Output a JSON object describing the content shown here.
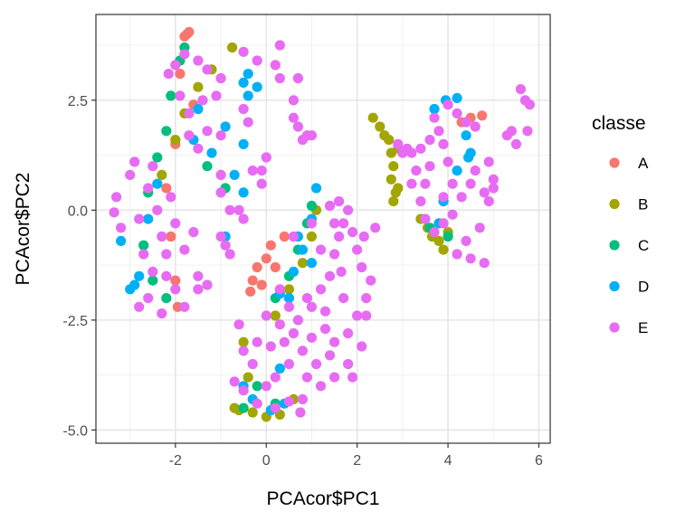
{
  "chart_data": {
    "type": "scatter",
    "title": "",
    "xlabel": "PCAcor$PC1",
    "ylabel": "PCAcor$PC2",
    "xlim": [
      -3.75,
      6.25
    ],
    "ylim": [
      -5.3,
      4.45
    ],
    "x_ticks": [
      -2,
      0,
      2,
      4,
      6
    ],
    "y_ticks": [
      -5.0,
      -2.5,
      0.0,
      2.5
    ],
    "x_tick_labels": [
      "-2",
      "0",
      "2",
      "4",
      "6"
    ],
    "y_tick_labels": [
      "-5.0",
      "-2.5",
      "0.0",
      "2.5"
    ],
    "grid": true,
    "legend": {
      "title": "classe",
      "position": "right",
      "entries": [
        "A",
        "B",
        "C",
        "D",
        "E"
      ]
    },
    "colors": {
      "A": "#F8766D",
      "B": "#A3A500",
      "C": "#00BF7D",
      "D": "#00B0F6",
      "E": "#E76BF3"
    },
    "series": [
      {
        "name": "A",
        "points": [
          [
            -1.75,
            4.0
          ],
          [
            -1.7,
            4.05
          ],
          [
            -1.8,
            3.95
          ],
          [
            -1.9,
            3.1
          ],
          [
            -1.6,
            2.4
          ],
          [
            -2.0,
            1.5
          ],
          [
            -2.2,
            0.5
          ],
          [
            -2.1,
            -0.6
          ],
          [
            -2.0,
            -1.6
          ],
          [
            -1.95,
            -2.2
          ],
          [
            -0.3,
            -1.6
          ],
          [
            -0.2,
            -1.3
          ],
          [
            0.0,
            -1.1
          ],
          [
            -0.35,
            -1.85
          ],
          [
            -0.1,
            -1.7
          ],
          [
            0.1,
            -0.8
          ],
          [
            0.2,
            -1.3
          ],
          [
            4.3,
            2.0
          ],
          [
            4.5,
            2.1
          ],
          [
            4.75,
            2.15
          ],
          [
            0.4,
            -0.6
          ]
        ]
      },
      {
        "name": "B",
        "points": [
          [
            -0.75,
            3.7
          ],
          [
            -1.2,
            3.2
          ],
          [
            -1.5,
            2.8
          ],
          [
            -1.8,
            2.2
          ],
          [
            -2.0,
            1.6
          ],
          [
            -2.3,
            0.8
          ],
          [
            2.35,
            2.1
          ],
          [
            2.5,
            1.9
          ],
          [
            2.6,
            1.7
          ],
          [
            2.7,
            1.6
          ],
          [
            2.75,
            1.3
          ],
          [
            2.8,
            1.0
          ],
          [
            2.75,
            0.7
          ],
          [
            2.85,
            0.4
          ],
          [
            2.9,
            0.5
          ],
          [
            2.8,
            0.2
          ],
          [
            2.9,
            1.4
          ],
          [
            -0.7,
            -4.5
          ],
          [
            -0.6,
            -4.55
          ],
          [
            -0.3,
            -4.6
          ],
          [
            0.0,
            -4.7
          ],
          [
            0.3,
            -4.65
          ],
          [
            0.6,
            -4.3
          ],
          [
            -0.4,
            -3.8
          ],
          [
            -0.5,
            -3.0
          ],
          [
            0.2,
            -2.4
          ],
          [
            0.5,
            -1.8
          ],
          [
            0.8,
            -1.2
          ],
          [
            1.0,
            -0.6
          ],
          [
            1.1,
            0.0
          ],
          [
            3.65,
            -0.6
          ],
          [
            3.8,
            -0.7
          ],
          [
            3.9,
            -0.9
          ],
          [
            3.55,
            -0.4
          ],
          [
            3.4,
            -0.2
          ],
          [
            4.0,
            -0.5
          ]
        ]
      },
      {
        "name": "C",
        "points": [
          [
            -1.8,
            3.7
          ],
          [
            -1.9,
            3.4
          ],
          [
            -2.1,
            2.6
          ],
          [
            -2.2,
            1.8
          ],
          [
            -2.4,
            1.2
          ],
          [
            -2.6,
            0.4
          ],
          [
            -2.7,
            -0.8
          ],
          [
            -2.5,
            -1.6
          ],
          [
            -2.2,
            -2.0
          ],
          [
            -1.3,
            1.0
          ],
          [
            -0.9,
            0.5
          ],
          [
            -0.5,
            -4.5
          ],
          [
            0.2,
            -4.4
          ],
          [
            -0.2,
            -4.0
          ],
          [
            0.2,
            -2.0
          ],
          [
            0.5,
            -1.5
          ],
          [
            0.7,
            -0.9
          ],
          [
            0.9,
            -0.3
          ],
          [
            1.0,
            0.1
          ],
          [
            3.6,
            -0.4
          ],
          [
            4.0,
            -0.6
          ]
        ]
      },
      {
        "name": "D",
        "points": [
          [
            -2.9,
            -1.7
          ],
          [
            -3.0,
            -1.8
          ],
          [
            -2.8,
            -1.5
          ],
          [
            -3.2,
            -0.7
          ],
          [
            -2.6,
            -0.2
          ],
          [
            -2.4,
            0.6
          ],
          [
            -1.6,
            1.6
          ],
          [
            -1.2,
            1.3
          ],
          [
            -1.5,
            2.3
          ],
          [
            -0.5,
            2.9
          ],
          [
            -0.4,
            2.6
          ],
          [
            -0.2,
            2.8
          ],
          [
            -0.4,
            3.1
          ],
          [
            -0.5,
            1.5
          ],
          [
            -0.5,
            0.4
          ],
          [
            -0.7,
            0.8
          ],
          [
            -0.9,
            1.9
          ],
          [
            -0.9,
            -0.6
          ],
          [
            -0.5,
            -4.0
          ],
          [
            -0.3,
            -4.3
          ],
          [
            0.1,
            -4.55
          ],
          [
            0.4,
            -4.4
          ],
          [
            0.3,
            -3.6
          ],
          [
            0.5,
            -2.0
          ],
          [
            0.6,
            -1.4
          ],
          [
            0.8,
            -0.9
          ],
          [
            1.0,
            -1.2
          ],
          [
            0.7,
            -0.6
          ],
          [
            1.1,
            0.5
          ],
          [
            1.0,
            -0.2
          ],
          [
            0.3,
            -1.9
          ],
          [
            3.7,
            2.3
          ],
          [
            3.95,
            2.5
          ],
          [
            4.2,
            2.55
          ],
          [
            4.4,
            1.7
          ],
          [
            4.45,
            1.2
          ],
          [
            4.5,
            1.3
          ],
          [
            3.9,
            0.2
          ],
          [
            3.8,
            -0.3
          ],
          [
            4.2,
            0.9
          ]
        ]
      },
      {
        "name": "E",
        "points": [
          [
            -2.15,
            3.1
          ],
          [
            -1.8,
            3.55
          ],
          [
            -1.5,
            3.4
          ],
          [
            -1.3,
            3.2
          ],
          [
            -1.0,
            3.0
          ],
          [
            -1.1,
            2.6
          ],
          [
            -1.4,
            2.5
          ],
          [
            -1.7,
            2.2
          ],
          [
            -1.9,
            2.6
          ],
          [
            -2.0,
            3.3
          ],
          [
            -1.7,
            1.7
          ],
          [
            -1.5,
            1.4
          ],
          [
            -1.3,
            1.8
          ],
          [
            -1.0,
            1.7
          ],
          [
            -0.5,
            2.3
          ],
          [
            -0.4,
            2.0
          ],
          [
            -0.5,
            3.6
          ],
          [
            -0.2,
            3.4
          ],
          [
            0.2,
            3.3
          ],
          [
            0.3,
            3.0
          ],
          [
            0.6,
            2.5
          ],
          [
            0.6,
            2.1
          ],
          [
            0.7,
            1.9
          ],
          [
            0.8,
            1.6
          ],
          [
            0.9,
            1.7
          ],
          [
            1.0,
            1.7
          ],
          [
            0.7,
            3.0
          ],
          [
            0.3,
            3.75
          ],
          [
            0.0,
            1.2
          ],
          [
            -0.1,
            0.9
          ],
          [
            -0.1,
            0.6
          ],
          [
            -0.3,
            0.9
          ],
          [
            -1.0,
            0.4
          ],
          [
            -1.0,
            0.8
          ],
          [
            -0.8,
            0.0
          ],
          [
            -0.6,
            0.0
          ],
          [
            -0.5,
            -0.2
          ],
          [
            -1.0,
            -0.6
          ],
          [
            -0.9,
            -0.8
          ],
          [
            -2.5,
            1.0
          ],
          [
            -2.6,
            0.5
          ],
          [
            -2.4,
            0.0
          ],
          [
            -2.3,
            -0.6
          ],
          [
            -2.2,
            -1.0
          ],
          [
            -2.5,
            -1.4
          ],
          [
            -2.0,
            -1.8
          ],
          [
            -1.8,
            -2.2
          ],
          [
            -1.5,
            -1.8
          ],
          [
            -2.8,
            -0.2
          ],
          [
            -3.3,
            0.3
          ],
          [
            -3.35,
            -0.05
          ],
          [
            -3.2,
            -0.4
          ],
          [
            -3.0,
            0.8
          ],
          [
            -2.9,
            1.1
          ],
          [
            -2.7,
            -1.0
          ],
          [
            -2.6,
            -2.0
          ],
          [
            -2.8,
            -2.2
          ],
          [
            -2.3,
            -2.35
          ],
          [
            -1.5,
            -1.5
          ],
          [
            -1.3,
            -1.7
          ],
          [
            -1.6,
            -0.5
          ],
          [
            -1.8,
            -0.9
          ],
          [
            -2.1,
            0.3
          ],
          [
            -2.0,
            -0.3
          ],
          [
            -2.2,
            -1.5
          ],
          [
            -0.8,
            -1.0
          ],
          [
            0.3,
            -1.8
          ],
          [
            0.5,
            -2.2
          ],
          [
            0.7,
            -2.5
          ],
          [
            1.0,
            -2.2
          ],
          [
            1.2,
            -1.8
          ],
          [
            1.4,
            -1.5
          ],
          [
            1.5,
            -1.0
          ],
          [
            1.6,
            -0.6
          ],
          [
            1.7,
            -0.3
          ],
          [
            1.8,
            0.0
          ],
          [
            1.6,
            0.2
          ],
          [
            1.4,
            0.1
          ],
          [
            1.9,
            -0.5
          ],
          [
            2.0,
            -0.9
          ],
          [
            2.1,
            -1.3
          ],
          [
            2.3,
            -1.6
          ],
          [
            2.2,
            -2.0
          ],
          [
            2.0,
            -2.4
          ],
          [
            1.8,
            -2.8
          ],
          [
            1.5,
            -3.0
          ],
          [
            1.3,
            -2.7
          ],
          [
            1.0,
            -2.9
          ],
          [
            0.8,
            -3.2
          ],
          [
            0.5,
            -3.5
          ],
          [
            0.2,
            -3.8
          ],
          [
            0.0,
            -4.0
          ],
          [
            -0.3,
            -3.5
          ],
          [
            -0.5,
            -3.2
          ],
          [
            -0.6,
            -2.6
          ],
          [
            -0.7,
            -3.9
          ],
          [
            -0.5,
            -4.1
          ],
          [
            -0.2,
            -4.4
          ],
          [
            0.2,
            -4.5
          ],
          [
            0.5,
            -4.35
          ],
          [
            0.8,
            -4.3
          ],
          [
            0.75,
            -4.6
          ],
          [
            0.9,
            -3.8
          ],
          [
            1.2,
            -4.0
          ],
          [
            1.5,
            -3.8
          ],
          [
            1.8,
            -3.5
          ],
          [
            1.9,
            -3.8
          ],
          [
            2.1,
            -3.1
          ],
          [
            1.4,
            -3.3
          ],
          [
            1.1,
            -3.5
          ],
          [
            0.6,
            -2.8
          ],
          [
            0.9,
            -2.0
          ],
          [
            1.5,
            -0.3
          ],
          [
            1.65,
            -1.4
          ],
          [
            2.15,
            -0.6
          ],
          [
            2.4,
            -0.4
          ],
          [
            2.2,
            -2.4
          ],
          [
            0.6,
            -0.6
          ],
          [
            1.0,
            -0.3
          ],
          [
            1.2,
            -0.9
          ],
          [
            1.3,
            -2.3
          ],
          [
            1.7,
            -2.0
          ],
          [
            0.4,
            -3.0
          ],
          [
            0.1,
            -3.1
          ],
          [
            0.3,
            -2.6
          ],
          [
            -0.2,
            -3.0
          ],
          [
            0.0,
            -2.4
          ],
          [
            3.1,
            1.4
          ],
          [
            3.2,
            1.3
          ],
          [
            3.4,
            1.4
          ],
          [
            3.6,
            1.6
          ],
          [
            3.8,
            1.8
          ],
          [
            3.9,
            1.5
          ],
          [
            3.6,
            1.0
          ],
          [
            3.5,
            0.6
          ],
          [
            3.4,
            0.2
          ],
          [
            3.5,
            -0.2
          ],
          [
            3.7,
            -0.5
          ],
          [
            3.9,
            -0.3
          ],
          [
            4.1,
            -0.1
          ],
          [
            4.3,
            0.3
          ],
          [
            4.5,
            0.6
          ],
          [
            4.6,
            0.9
          ],
          [
            4.8,
            0.4
          ],
          [
            4.9,
            0.2
          ],
          [
            4.7,
            -0.4
          ],
          [
            4.4,
            -0.7
          ],
          [
            4.2,
            -1.0
          ],
          [
            4.5,
            -1.1
          ],
          [
            4.8,
            -1.2
          ],
          [
            3.7,
            2.1
          ],
          [
            4.0,
            2.4
          ],
          [
            4.2,
            2.2
          ],
          [
            4.4,
            2.0
          ],
          [
            4.6,
            1.9
          ],
          [
            4.9,
            1.1
          ],
          [
            5.0,
            0.7
          ],
          [
            5.0,
            0.5
          ],
          [
            4.0,
            1.1
          ],
          [
            4.1,
            0.6
          ],
          [
            3.9,
            0.3
          ],
          [
            3.3,
            0.9
          ],
          [
            3.2,
            0.6
          ],
          [
            5.3,
            1.7
          ],
          [
            5.4,
            1.8
          ],
          [
            5.7,
            2.5
          ],
          [
            5.8,
            2.4
          ],
          [
            5.75,
            1.8
          ],
          [
            5.5,
            1.5
          ],
          [
            5.6,
            2.75
          ],
          [
            3.0,
            1.3
          ],
          [
            2.9,
            1.5
          ]
        ]
      }
    ]
  }
}
